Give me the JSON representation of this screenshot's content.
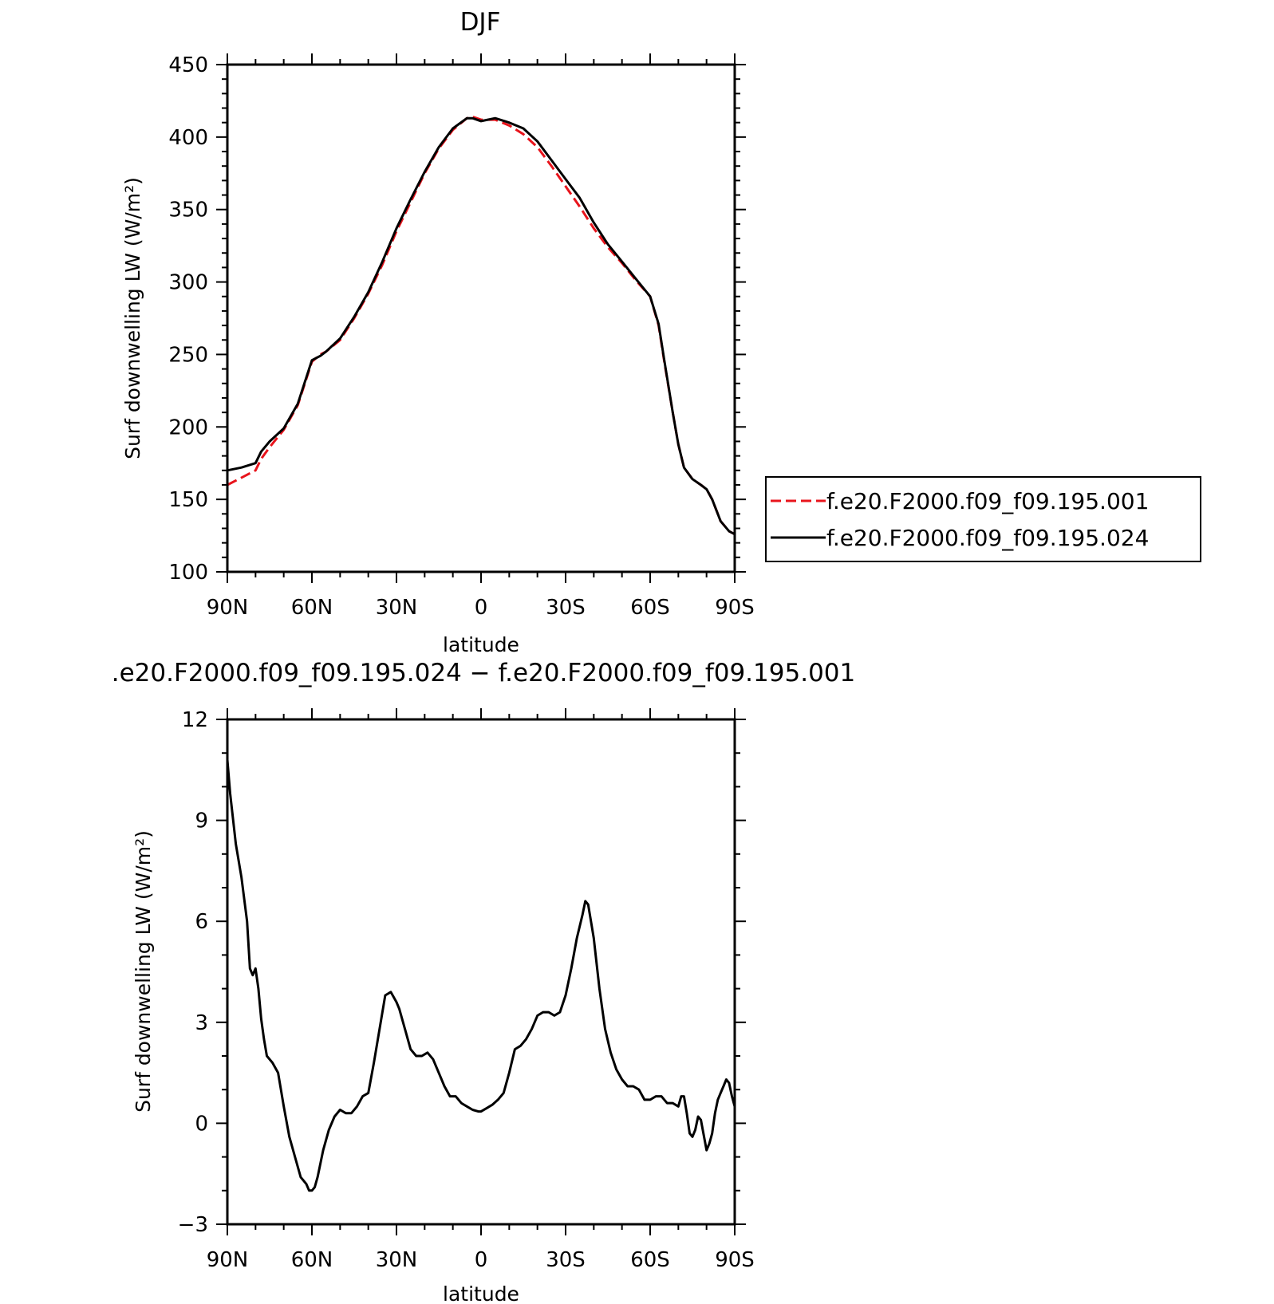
{
  "chart_data": [
    {
      "type": "line",
      "title": "DJF",
      "xlabel": "latitude",
      "ylabel": "Surf downwelling LW (W/m²)",
      "xlim": [
        90,
        -90
      ],
      "ylim": [
        100,
        450
      ],
      "xticks": [
        90,
        60,
        30,
        0,
        -30,
        -60,
        -90
      ],
      "xtick_labels": [
        "90N",
        "60N",
        "30N",
        "0",
        "30S",
        "60S",
        "90S"
      ],
      "yticks": [
        100,
        150,
        200,
        250,
        300,
        350,
        400,
        450
      ],
      "ytick_labels": [
        "100",
        "150",
        "200",
        "250",
        "300",
        "350",
        "400",
        "450"
      ],
      "legend": "right",
      "series": [
        {
          "name": "f.e20.F2000.f09_f09.195.001",
          "color": "#e8141c",
          "dash": "dashed",
          "x": [
            90,
            85,
            80,
            78,
            75,
            70,
            65,
            60,
            57,
            55,
            50,
            45,
            40,
            35,
            30,
            25,
            20,
            15,
            10,
            5,
            3,
            0,
            -5,
            -10,
            -15,
            -20,
            -25,
            -30,
            -35,
            -40,
            -45,
            -50,
            -55,
            -60,
            -63,
            -65,
            -68,
            -70,
            -72,
            -75,
            -78,
            -80,
            -82,
            -85,
            -88,
            -90
          ],
          "y": [
            160,
            165,
            170,
            178,
            186,
            198,
            215,
            245,
            250,
            252,
            260,
            275,
            292,
            312,
            335,
            355,
            375,
            392,
            405,
            413,
            414,
            412,
            412,
            408,
            402,
            393,
            380,
            366,
            352,
            337,
            324,
            313,
            301,
            290,
            270,
            245,
            210,
            188,
            172,
            164,
            160,
            157,
            150,
            135,
            128,
            126
          ]
        },
        {
          "name": "f.e20.F2000.f09_f09.195.024",
          "color": "#000000",
          "dash": "solid",
          "x": [
            90,
            85,
            80,
            78,
            75,
            70,
            65,
            60,
            57,
            55,
            50,
            45,
            40,
            35,
            30,
            25,
            20,
            15,
            10,
            5,
            3,
            0,
            -5,
            -10,
            -15,
            -20,
            -25,
            -30,
            -35,
            -40,
            -45,
            -50,
            -55,
            -60,
            -63,
            -65,
            -68,
            -70,
            -72,
            -75,
            -78,
            -80,
            -82,
            -85,
            -88,
            -90
          ],
          "y": [
            170,
            172,
            175,
            183,
            190,
            199,
            216,
            246,
            249,
            252,
            261,
            276,
            293,
            314,
            337,
            357,
            376,
            393,
            406,
            413,
            413,
            411,
            413,
            410,
            406,
            397,
            384,
            371,
            358,
            341,
            326,
            314,
            302,
            290,
            271,
            246,
            210,
            188,
            172,
            164,
            160,
            157,
            150,
            135,
            128,
            126
          ]
        }
      ]
    },
    {
      "type": "line",
      "title": ".e20.F2000.f09_f09.195.024 − f.e20.F2000.f09_f09.195.001",
      "xlabel": "latitude",
      "ylabel": "Surf downwelling LW (W/m²)",
      "xlim": [
        90,
        -90
      ],
      "ylim": [
        -3,
        12
      ],
      "xticks": [
        90,
        60,
        30,
        0,
        -30,
        -60,
        -90
      ],
      "xtick_labels": [
        "90N",
        "60N",
        "30N",
        "0",
        "30S",
        "60S",
        "90S"
      ],
      "yticks": [
        -3,
        0,
        3,
        6,
        9,
        12
      ],
      "ytick_labels": [
        "−3",
        "0",
        "3",
        "6",
        "9",
        "12"
      ],
      "series": [
        {
          "color": "#000000",
          "dash": "solid",
          "x": [
            90,
            89,
            87,
            85,
            83,
            82,
            81,
            80,
            79,
            78,
            77,
            76,
            74,
            72,
            70,
            68,
            66,
            64,
            62,
            61,
            60,
            59,
            58,
            56,
            54,
            52,
            50,
            48,
            46,
            44,
            42,
            40,
            38,
            36,
            34,
            32,
            30,
            29,
            27,
            25,
            23,
            21,
            19,
            17,
            15,
            13,
            11,
            9,
            7,
            5,
            3,
            1,
            0,
            -2,
            -4,
            -6,
            -8,
            -10,
            -12,
            -14,
            -16,
            -18,
            -20,
            -22,
            -24,
            -26,
            -28,
            -30,
            -32,
            -34,
            -36,
            -37,
            -38,
            -40,
            -42,
            -44,
            -46,
            -48,
            -50,
            -52,
            -54,
            -56,
            -58,
            -60,
            -62,
            -64,
            -66,
            -68,
            -70,
            -71,
            -72,
            -73,
            -74,
            -75,
            -76,
            -77,
            -78,
            -80,
            -81,
            -82,
            -83,
            -84,
            -85,
            -86,
            -87,
            -88,
            -89,
            -90
          ],
          "y": [
            10.8,
            9.8,
            8.3,
            7.3,
            6.0,
            4.6,
            4.4,
            4.6,
            4.0,
            3.1,
            2.5,
            2.0,
            1.8,
            1.5,
            0.5,
            -0.4,
            -1.0,
            -1.6,
            -1.8,
            -2.0,
            -2.0,
            -1.9,
            -1.6,
            -0.8,
            -0.2,
            0.2,
            0.4,
            0.3,
            0.3,
            0.5,
            0.8,
            0.9,
            1.8,
            2.8,
            3.8,
            3.9,
            3.6,
            3.4,
            2.8,
            2.2,
            2.0,
            2.0,
            2.1,
            1.9,
            1.5,
            1.1,
            0.8,
            0.8,
            0.6,
            0.5,
            0.4,
            0.35,
            0.35,
            0.45,
            0.55,
            0.7,
            0.9,
            1.5,
            2.2,
            2.3,
            2.5,
            2.8,
            3.2,
            3.3,
            3.3,
            3.2,
            3.3,
            3.8,
            4.6,
            5.5,
            6.2,
            6.6,
            6.5,
            5.5,
            4.0,
            2.8,
            2.1,
            1.6,
            1.3,
            1.1,
            1.1,
            1.0,
            0.7,
            0.7,
            0.8,
            0.8,
            0.6,
            0.6,
            0.5,
            0.8,
            0.8,
            0.3,
            -0.3,
            -0.4,
            -0.2,
            0.2,
            0.1,
            -0.8,
            -0.6,
            -0.3,
            0.3,
            0.7,
            0.9,
            1.1,
            1.3,
            1.2,
            0.8,
            0.5
          ]
        }
      ]
    }
  ]
}
